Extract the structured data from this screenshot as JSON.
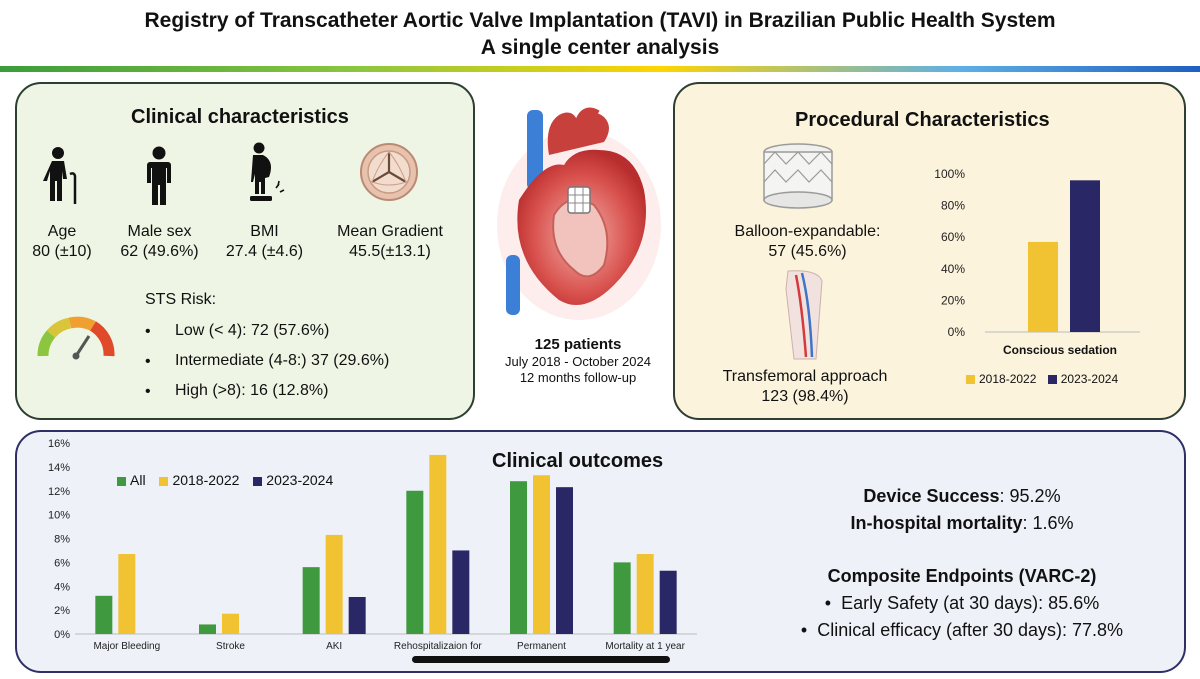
{
  "header": {
    "title_line1": "Registry of Transcatheter Aortic Valve Implantation (TAVI) in Brazilian Public Health System",
    "title_line2": "A single center analysis"
  },
  "clinical": {
    "title": "Clinical characteristics",
    "stats": [
      {
        "label": "Age",
        "value": "80 (±10)",
        "icon": "elderly-person-icon"
      },
      {
        "label": "Male sex",
        "value": "62 (49.6%)",
        "icon": "male-person-icon"
      },
      {
        "label": "BMI",
        "value": "27.4 (±4.6)",
        "icon": "weight-scale-person-icon"
      },
      {
        "label": "Mean Gradient",
        "value": "45.5(±13.1)",
        "icon": "aortic-valve-icon"
      }
    ],
    "sts_title": "STS Risk:",
    "sts": [
      "Low (< 4): 72 (57.6%)",
      "Intermediate (4-8:) 37 (29.6%)",
      "High (>8): 16 (12.8%)"
    ],
    "bullet": "•"
  },
  "center": {
    "patients": "125 patients",
    "period": "July 2018 - October 2024",
    "followup": "12 months follow-up"
  },
  "procedural": {
    "title": "Procedural Characteristics",
    "balloon_label": "Balloon-expandable:",
    "balloon_value": "57 (45.6%)",
    "transfemoral_label": "Transfemoral approach",
    "transfemoral_value": "123 (98.4%)"
  },
  "outcomes": {
    "title": "Clinical outcomes",
    "device_label": "Device Success",
    "device_value": ": 95.2%",
    "mortality_label": "In-hospital mortality",
    "mortality_value": ": 1.6%",
    "composite_title": "Composite Endpoints (VARC-2)",
    "bullets": [
      "Early Safety (at 30 days): 85.6%",
      "Clinical efficacy (after 30 days): 77.8%"
    ],
    "bullet": "•"
  },
  "colors": {
    "green": "#3f9a3f",
    "yellow": "#f1c232",
    "navy": "#2a2766"
  },
  "chart_data": [
    {
      "type": "bar",
      "title": "",
      "xlabel": "Conscious sedation",
      "ylabel": "",
      "ylim": [
        0,
        1
      ],
      "yticks": [
        "0%",
        "20%",
        "40%",
        "60%",
        "80%",
        "100%"
      ],
      "categories": [
        "Conscious sedation"
      ],
      "series": [
        {
          "name": "2018-2022",
          "values": [
            0.57
          ]
        },
        {
          "name": "2023-2024",
          "values": [
            0.96
          ]
        }
      ],
      "legend": "bottom"
    },
    {
      "type": "bar",
      "title": "",
      "xlabel": "",
      "ylabel": "",
      "ylim": [
        0,
        0.16
      ],
      "yticks": [
        "0%",
        "2%",
        "4%",
        "6%",
        "8%",
        "10%",
        "12%",
        "14%",
        "16%"
      ],
      "categories": [
        "Major Bleeding",
        "Stroke",
        "AKI",
        "Rehospitalizaion for",
        "Permanent",
        "Mortality at 1 year"
      ],
      "series": [
        {
          "name": "All",
          "values": [
            0.032,
            0.008,
            0.056,
            0.12,
            0.128,
            0.06
          ]
        },
        {
          "name": "2018-2022",
          "values": [
            0.067,
            0.017,
            0.083,
            0.15,
            0.133,
            0.067
          ]
        },
        {
          "name": "2023-2024",
          "values": [
            null,
            null,
            0.031,
            0.07,
            0.123,
            0.053
          ]
        }
      ],
      "legend": "top-left"
    }
  ]
}
